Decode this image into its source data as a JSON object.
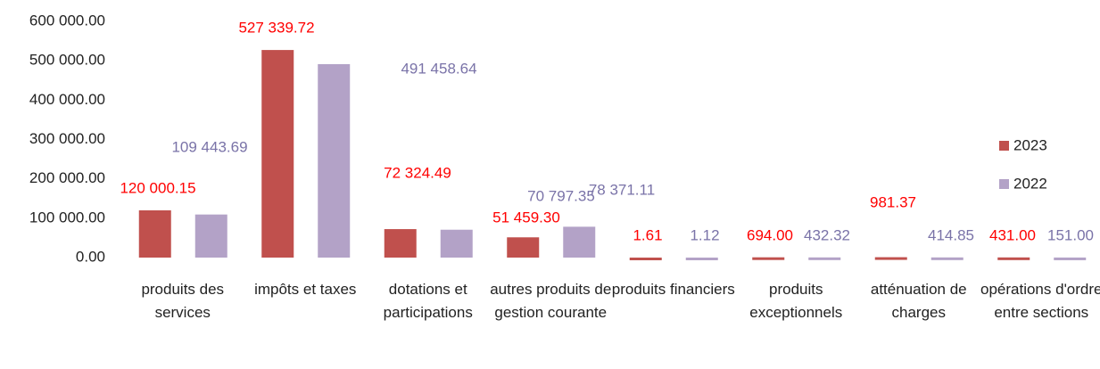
{
  "chart_data": {
    "type": "bar",
    "categories": [
      "produits des services",
      "impôts et taxes",
      "dotations et participations",
      "autres produits de gestion courante",
      "produits financiers",
      "produits exceptionnels",
      "atténuation de charges",
      "opérations d'ordre entre sections"
    ],
    "series": [
      {
        "name": "2023",
        "color": "#c0504d",
        "label_color": "#ff0000",
        "values": [
          120000.15,
          527339.72,
          72324.49,
          51459.3,
          1.61,
          694.0,
          981.37,
          431.0
        ],
        "value_labels": [
          "120 000.15",
          "527 339.72",
          "72 324.49",
          "51 459.30",
          "1.61",
          "694.00",
          "981.37",
          "431.00"
        ]
      },
      {
        "name": "2022",
        "color": "#b3a2c7",
        "label_color": "#7a73a8",
        "values": [
          109443.69,
          491458.64,
          70797.35,
          78371.11,
          1.12,
          432.32,
          414.85,
          151.0
        ],
        "value_labels": [
          "109 443.69",
          "491 458.64",
          "70 797.35",
          "78 371.11",
          "1.12",
          "432.32",
          "414.85",
          "151.00"
        ]
      }
    ],
    "ylim": [
      0,
      600000
    ],
    "yticks": [
      {
        "value": 0,
        "label": "0.00"
      },
      {
        "value": 100000,
        "label": "100 000.00"
      },
      {
        "value": 200000,
        "label": "200 000.00"
      },
      {
        "value": 300000,
        "label": "300 000.00"
      },
      {
        "value": 400000,
        "label": "400 000.00"
      },
      {
        "value": 500000,
        "label": "500 000.00"
      },
      {
        "value": 600000,
        "label": "600 000.00"
      }
    ],
    "legend": "right"
  }
}
